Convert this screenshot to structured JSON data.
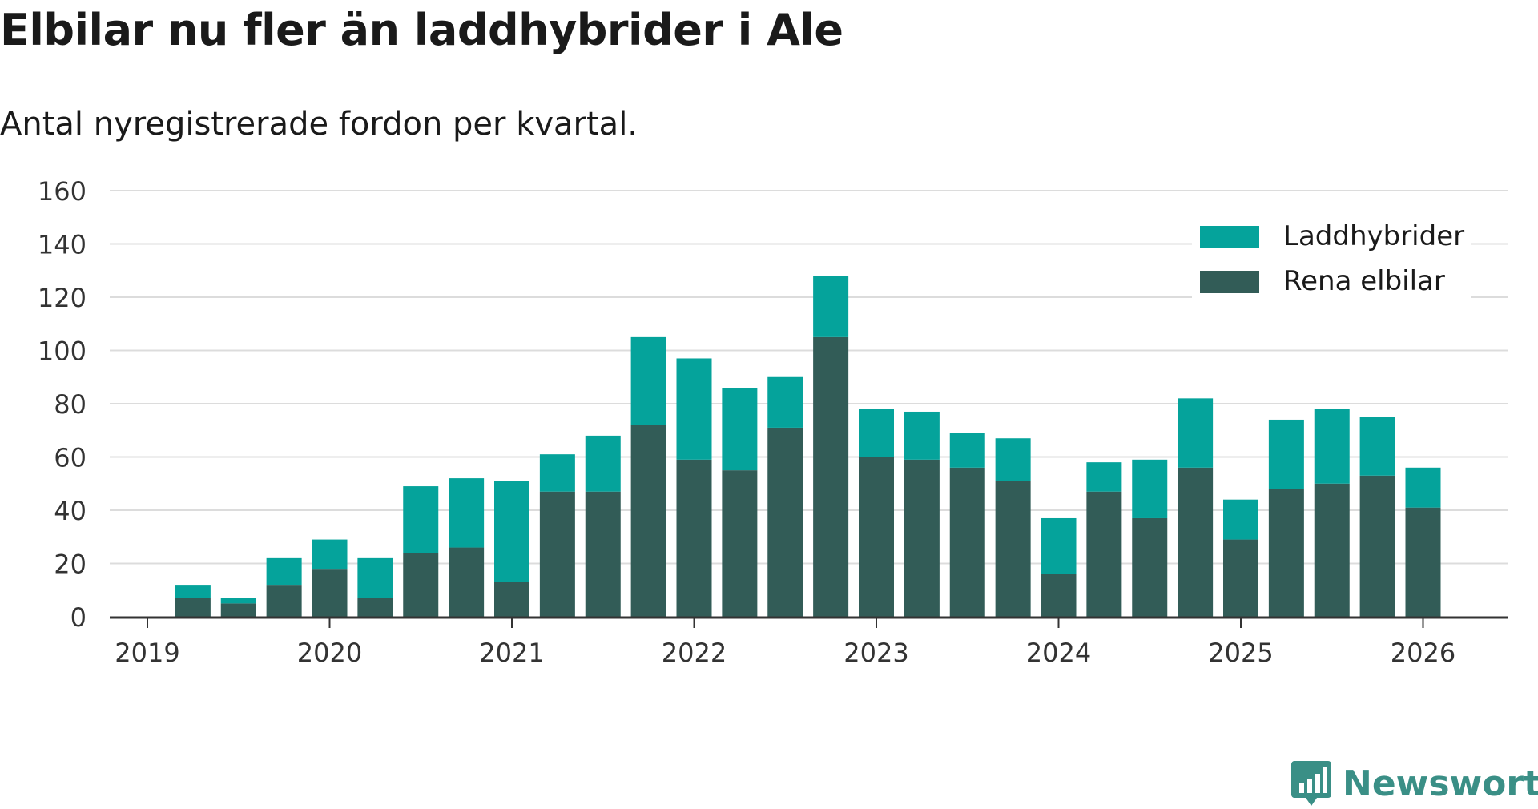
{
  "title": "Elbilar nu fler än laddhybrider i Ale",
  "subtitle": "Antal nyregistrerade fordon per kvartal.",
  "brand": "Newsworthy",
  "colors": {
    "laddhybrider": "#05a39b",
    "rena": "#325c57",
    "grid": "#dcdcdc",
    "axis": "#333333",
    "brand": "#3a8f86"
  },
  "chart_data": {
    "type": "bar",
    "stacked": true,
    "title": "Elbilar nu fler än laddhybrider i Ale",
    "subtitle": "Antal nyregistrerade fordon per kvartal.",
    "xlabel": "",
    "ylabel": "",
    "ylim": [
      0,
      160
    ],
    "yticks": [
      0,
      20,
      40,
      60,
      80,
      100,
      120,
      140,
      160
    ],
    "xticks": [
      "2019",
      "2020",
      "2021",
      "2022",
      "2023",
      "2024",
      "2025",
      "2026"
    ],
    "grid": true,
    "legend_position": "top-right",
    "categories": [
      "2019 Q2",
      "2019 Q3",
      "2019 Q4",
      "2020 Q1",
      "2020 Q2",
      "2020 Q3",
      "2020 Q4",
      "2021 Q1",
      "2021 Q2",
      "2021 Q3",
      "2021 Q4",
      "2022 Q1",
      "2022 Q2",
      "2022 Q3",
      "2022 Q4",
      "2023 Q1",
      "2023 Q2",
      "2023 Q3",
      "2023 Q4",
      "2024 Q1",
      "2024 Q2",
      "2024 Q3",
      "2024 Q4",
      "2025 Q1",
      "2025 Q2",
      "2025 Q3",
      "2025 Q4",
      "2026 Q1"
    ],
    "series": [
      {
        "name": "Rena elbilar",
        "values": [
          7,
          5,
          12,
          18,
          7,
          24,
          26,
          13,
          47,
          47,
          72,
          59,
          55,
          71,
          105,
          60,
          59,
          56,
          51,
          16,
          47,
          37,
          56,
          29,
          48,
          50,
          53,
          41
        ]
      },
      {
        "name": "Laddhybrider",
        "values": [
          5,
          2,
          10,
          11,
          15,
          25,
          26,
          38,
          14,
          21,
          33,
          38,
          31,
          19,
          23,
          18,
          18,
          13,
          16,
          21,
          11,
          22,
          26,
          15,
          26,
          28,
          22,
          15
        ]
      }
    ]
  }
}
